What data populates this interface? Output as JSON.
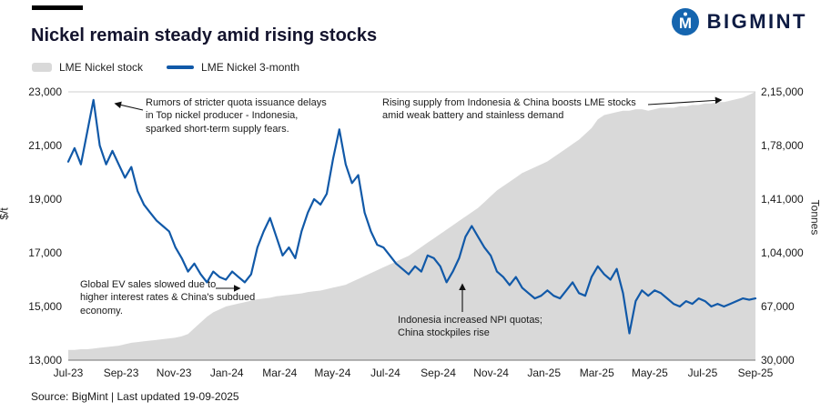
{
  "header": {
    "title": "Nickel remain steady amid rising stocks",
    "brand": {
      "name": "BIGMINT",
      "icon": "bigmint-logo-icon",
      "icon_color": "#1565af",
      "text_color": "#0d1b43"
    }
  },
  "legend": [
    {
      "label": "LME Nickel stock",
      "swatch": "area",
      "color": "#d9d9d9"
    },
    {
      "label": "LME Nickel 3-month",
      "swatch": "line",
      "color": "#1159a8"
    }
  ],
  "chart_data": {
    "type": "line",
    "title": "Nickel remain steady amid rising stocks",
    "x_tick_labels": [
      "Jul-23",
      "Sep-23",
      "Nov-23",
      "Jan-24",
      "Mar-24",
      "May-24",
      "Jul-24",
      "Sep-24",
      "Nov-24",
      "Jan-25",
      "Mar-25",
      "May-25",
      "Jul-25",
      "Sep-25"
    ],
    "x_range_months": [
      0,
      26
    ],
    "sampling": "weekly, Jul-2023 to Sep-2025",
    "grid": "top and bottom border lines only",
    "legend_position": "top-left",
    "left_axis": {
      "label": "$/t",
      "min": 13000,
      "max": 23000,
      "ticks": [
        "13,000",
        "15,000",
        "17,000",
        "19,000",
        "21,000",
        "23,000"
      ]
    },
    "right_axis": {
      "label": "Tonnes",
      "min": 30000,
      "max": 215000,
      "ticks": [
        "30,000",
        "67,000",
        "1,04,000",
        "1,41,000",
        "1,78,000",
        "2,15,000"
      ]
    },
    "series": [
      {
        "name": "LME Nickel stock",
        "type": "area",
        "axis": "right",
        "color": "#d9d9d9",
        "values": [
          37000,
          37000,
          37500,
          37500,
          38000,
          38500,
          39000,
          39500,
          40000,
          41000,
          42000,
          42500,
          43000,
          43500,
          44000,
          44500,
          45000,
          45500,
          46500,
          48000,
          52000,
          56000,
          60000,
          63000,
          65000,
          67000,
          68000,
          69000,
          70000,
          71000,
          72000,
          72500,
          73000,
          74000,
          74500,
          75000,
          75500,
          76000,
          77000,
          77500,
          78000,
          79000,
          80000,
          81000,
          82000,
          84000,
          86000,
          88000,
          90000,
          92000,
          94000,
          96000,
          98000,
          100000,
          102000,
          105000,
          108000,
          111000,
          114000,
          117000,
          120000,
          123000,
          126000,
          129000,
          132000,
          135000,
          139000,
          143000,
          147000,
          150000,
          153000,
          156000,
          159000,
          161000,
          163000,
          165000,
          167000,
          170000,
          173000,
          176000,
          179000,
          182000,
          186000,
          190000,
          196000,
          199000,
          200000,
          201000,
          202000,
          202000,
          203000,
          203000,
          202000,
          203000,
          204000,
          204000,
          204000,
          205000,
          205000,
          206000,
          206000,
          207000,
          207000,
          208000,
          208000,
          209000,
          210000,
          211000,
          213000,
          215000
        ]
      },
      {
        "name": "LME Nickel 3-month",
        "type": "line",
        "axis": "left",
        "color": "#1159a8",
        "values": [
          20400,
          20900,
          20300,
          21500,
          22700,
          21000,
          20300,
          20800,
          20300,
          19800,
          20200,
          19300,
          18800,
          18500,
          18200,
          18000,
          17800,
          17200,
          16800,
          16300,
          16600,
          16200,
          15900,
          16300,
          16100,
          16000,
          16300,
          16100,
          15900,
          16200,
          17200,
          17800,
          18300,
          17600,
          16900,
          17200,
          16800,
          17800,
          18500,
          19000,
          18800,
          19200,
          20500,
          21600,
          20300,
          19600,
          19900,
          18500,
          17800,
          17300,
          17200,
          16900,
          16600,
          16400,
          16200,
          16500,
          16300,
          16900,
          16800,
          16500,
          15900,
          16300,
          16800,
          17600,
          18000,
          17600,
          17200,
          16900,
          16300,
          16100,
          15800,
          16100,
          15700,
          15500,
          15300,
          15400,
          15600,
          15400,
          15300,
          15600,
          15900,
          15500,
          15400,
          16100,
          16500,
          16200,
          16000,
          16400,
          15500,
          14000,
          15200,
          15600,
          15400,
          15600,
          15500,
          15300,
          15100,
          15000,
          15200,
          15100,
          15300,
          15200,
          15000,
          15100,
          15000,
          15100,
          15200,
          15300,
          15250,
          15300
        ]
      }
    ]
  },
  "annotations": [
    {
      "id": "quota-rumors",
      "text": "Rumors of stricter quota issuance delays\nin Top nickel producer - Indonesia,\nsparked short-term supply fears.",
      "arrow": "left"
    },
    {
      "id": "rising-supply",
      "text": "Rising supply from Indonesia & China boosts LME stocks\namid weak battery and stainless demand",
      "arrow": "right"
    },
    {
      "id": "ev-sales",
      "text": "Global EV sales slowed due to\nhigher interest rates & China's subdued\neconomy.",
      "arrow": "right"
    },
    {
      "id": "npi-quotas",
      "text": "Indonesia increased NPI quotas;\nChina stockpiles rise",
      "arrow": "up"
    }
  ],
  "footer": {
    "source": "Source: BigMint | Last updated 19-09-2025"
  }
}
